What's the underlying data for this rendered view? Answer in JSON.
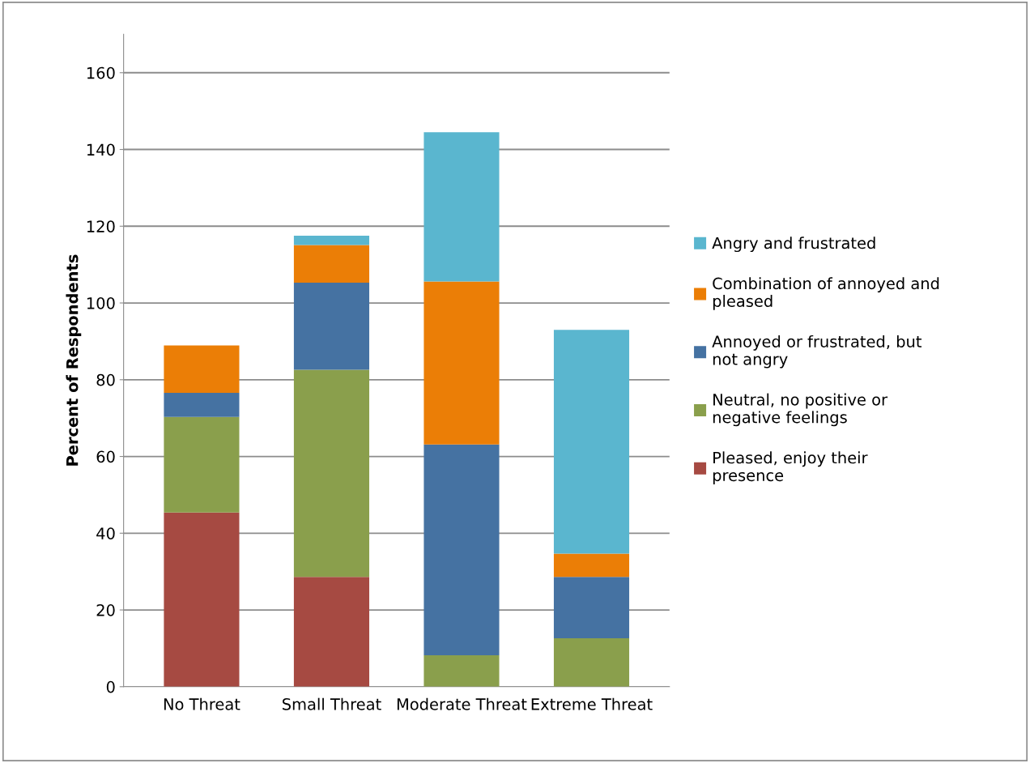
{
  "chart_data": {
    "type": "bar",
    "stacked": true,
    "ylabel": "Percent of Respondents",
    "categories": [
      "No Threat",
      "Small Threat",
      "Moderate Threat",
      "Extreme Threat"
    ],
    "series": [
      {
        "name": "Pleased, enjoy their presence",
        "color": "#a64a42",
        "values": [
          45.4,
          28.6,
          0,
          0
        ]
      },
      {
        "name": "Neutral, no positive or negative feelings",
        "color": "#8a9f4c",
        "values": [
          24.9,
          54.0,
          8.2,
          12.6
        ]
      },
      {
        "name": "Annoyed or frustrated, but not angry",
        "color": "#4572a2",
        "values": [
          6.3,
          22.7,
          54.9,
          16.0
        ]
      },
      {
        "name": "Combination of annoyed and pleased",
        "color": "#eb7e06",
        "values": [
          12.3,
          9.8,
          42.5,
          6.1
        ]
      },
      {
        "name": "Angry and frustrated",
        "color": "#5ab6cf",
        "values": [
          0,
          2.4,
          38.9,
          58.3
        ]
      }
    ],
    "ylim": [
      0,
      170
    ],
    "yticks": [
      0,
      20,
      40,
      60,
      80,
      100,
      120,
      140,
      160
    ],
    "grid": "y",
    "legend": "right"
  }
}
